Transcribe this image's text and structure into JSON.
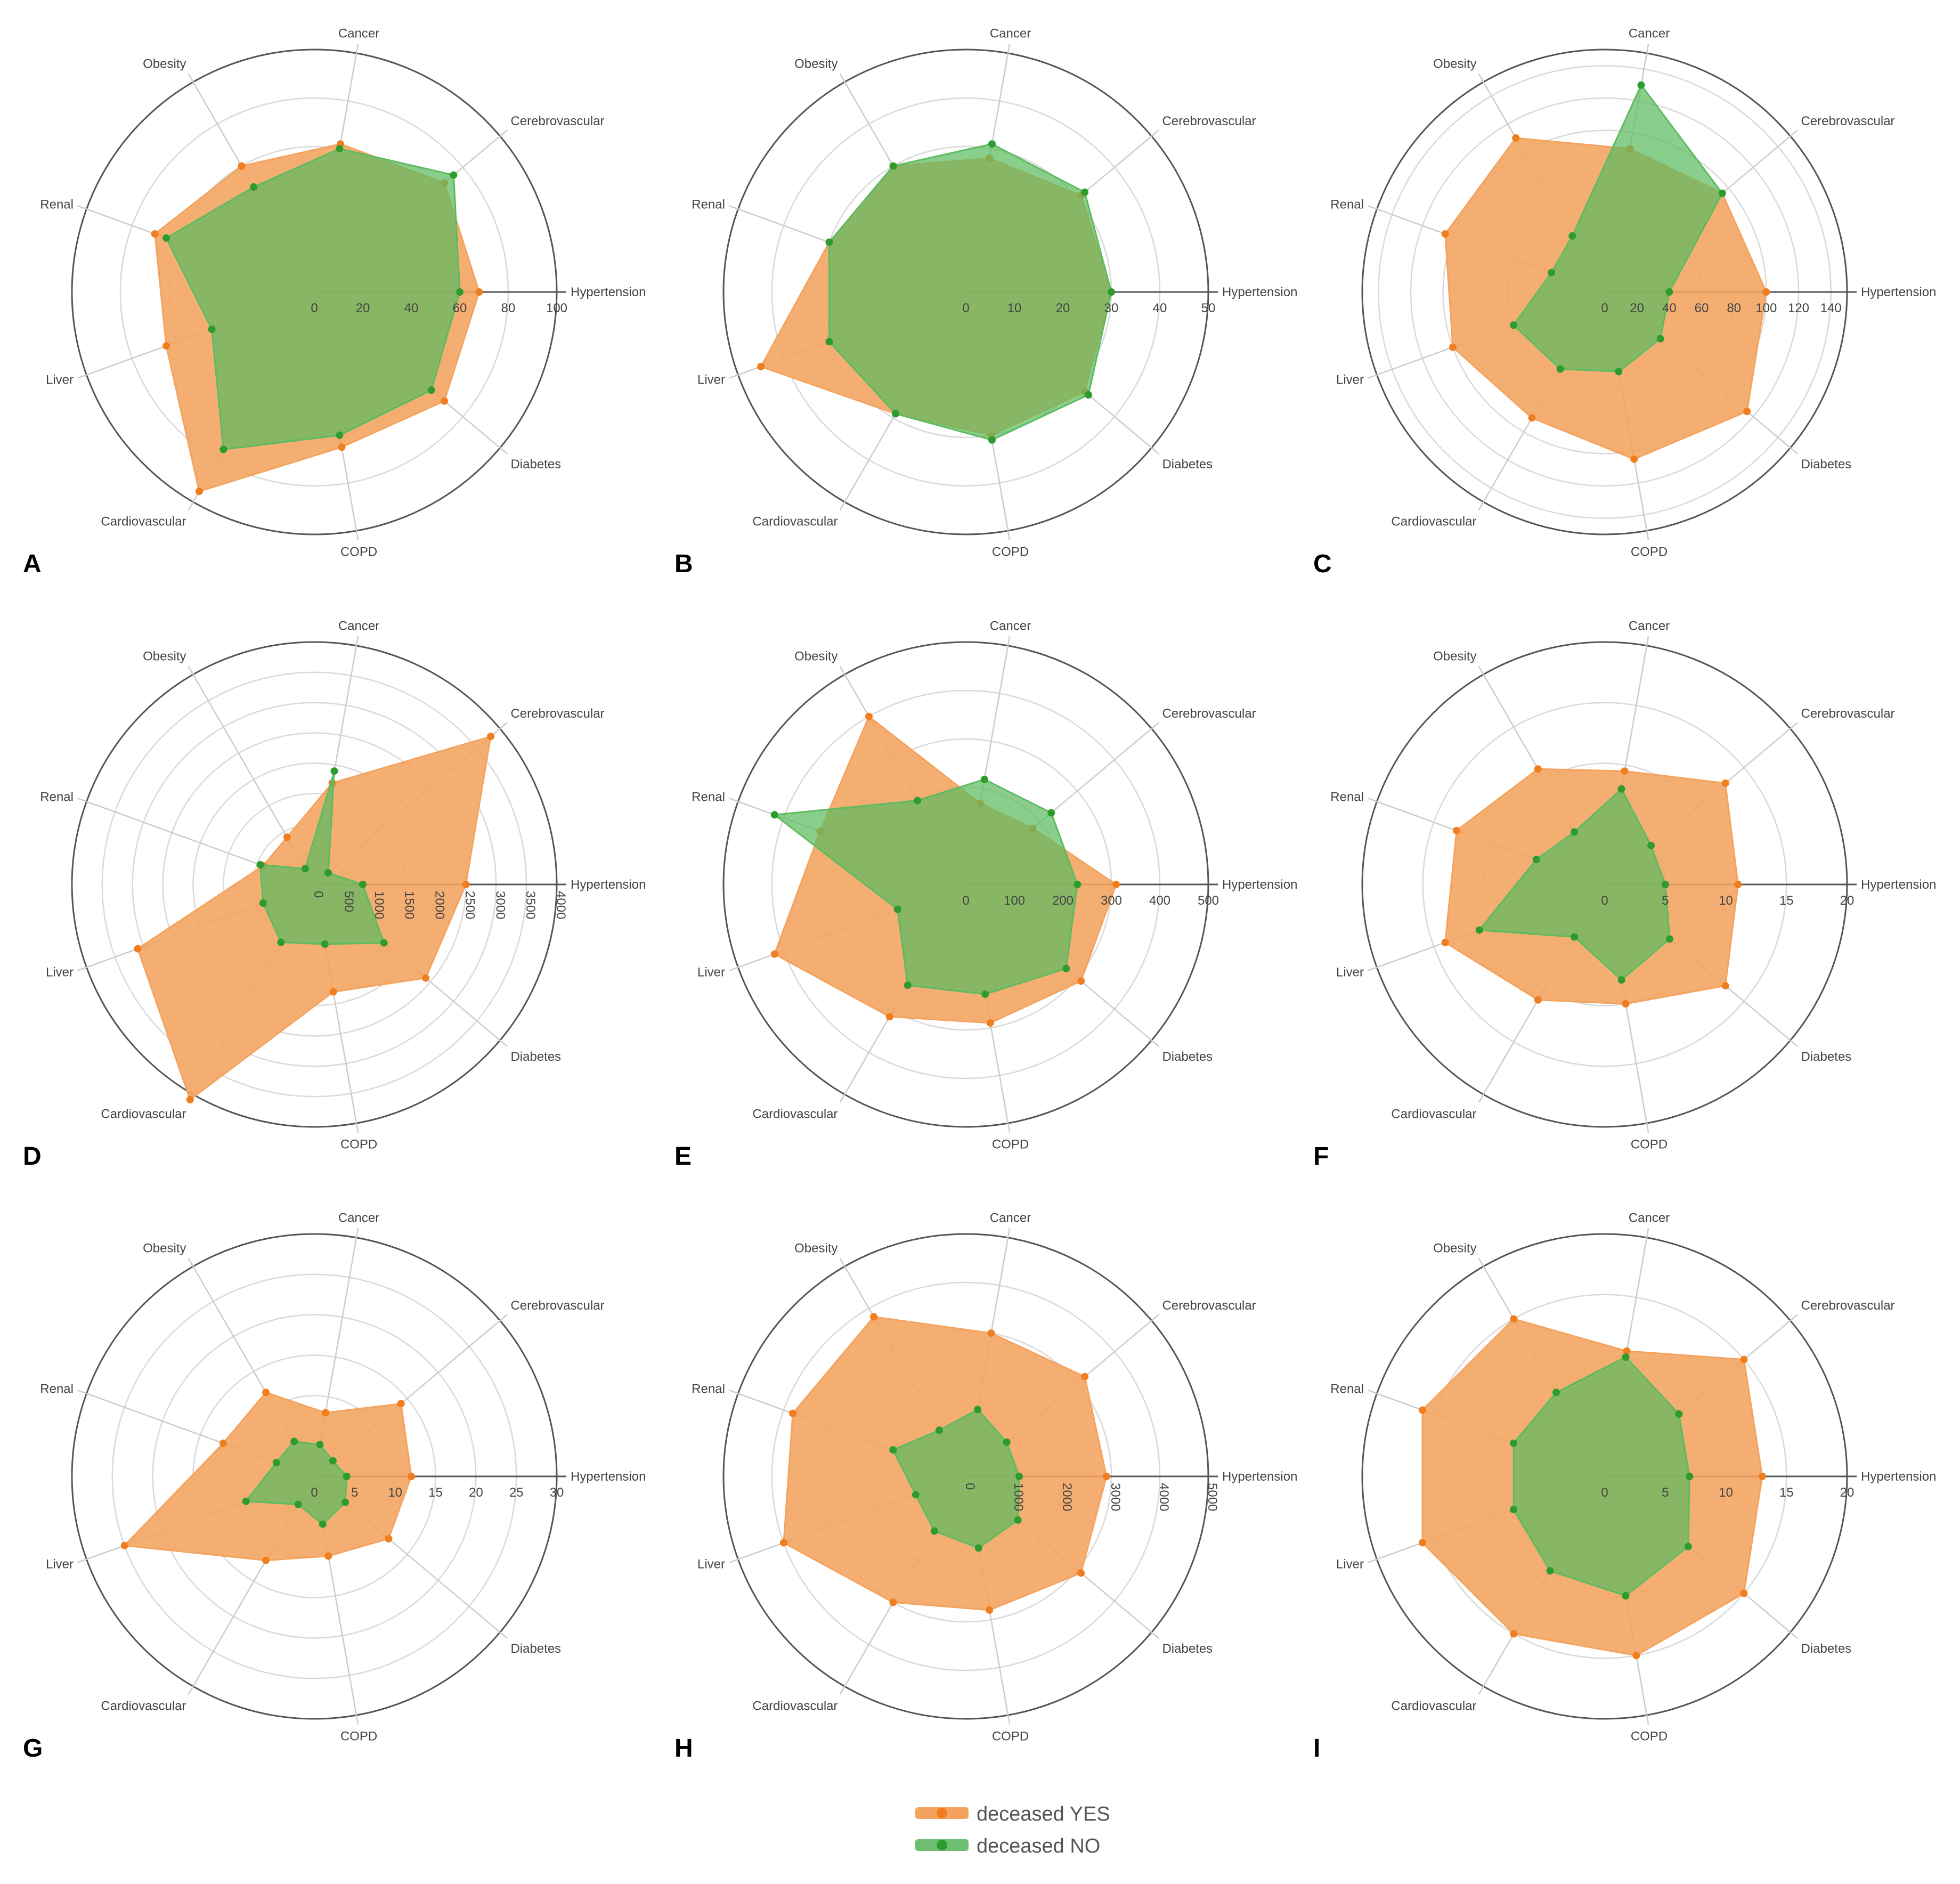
{
  "legend": {
    "items": [
      {
        "label": "deceased YES",
        "color": "#F4A35E",
        "marker": "#F07E1E"
      },
      {
        "label": "deceased NO",
        "color": "#6FBF73",
        "marker": "#2E9B2E"
      }
    ]
  },
  "chart_data": [
    {
      "type": "radar",
      "panel": "A",
      "categories": [
        "Hypertension",
        "Diabetes",
        "COPD",
        "Cardiovascular",
        "Liver",
        "Renal",
        "Obesity",
        "Cancer",
        "Cerebrovascular"
      ],
      "radial_range": [
        0,
        100
      ],
      "ticks": [
        0,
        20,
        40,
        60,
        80,
        100
      ],
      "tick_labels": [
        "0",
        "20",
        "40",
        "60",
        "80",
        "100"
      ],
      "series": [
        {
          "name": "deceased YES",
          "values": [
            68,
            70,
            65,
            95,
            65,
            70,
            60,
            62,
            70
          ]
        },
        {
          "name": "deceased NO",
          "values": [
            60,
            63,
            60,
            75,
            45,
            65,
            50,
            60,
            75
          ]
        }
      ]
    },
    {
      "type": "radar",
      "panel": "B",
      "categories": [
        "Hypertension",
        "Diabetes",
        "COPD",
        "Cardiovascular",
        "Liver",
        "Renal",
        "Obesity",
        "Cancer",
        "Cerebrovascular"
      ],
      "radial_range": [
        0,
        50
      ],
      "ticks": [
        0,
        10,
        20,
        30,
        40,
        50
      ],
      "tick_labels": [
        "0",
        "10",
        "20",
        "30",
        "40",
        "50"
      ],
      "series": [
        {
          "name": "deceased YES",
          "values": [
            30,
            32,
            30,
            29,
            45,
            30,
            30,
            28,
            31
          ]
        },
        {
          "name": "deceased NO",
          "values": [
            30,
            33,
            31,
            29,
            30,
            30,
            30,
            31,
            32
          ]
        }
      ]
    },
    {
      "type": "radar",
      "panel": "C",
      "categories": [
        "Hypertension",
        "Diabetes",
        "COPD",
        "Cardiovascular",
        "Liver",
        "Renal",
        "Obesity",
        "Cancer",
        "Cerebrovascular"
      ],
      "radial_range": [
        0,
        150
      ],
      "ticks": [
        0,
        20,
        40,
        60,
        80,
        100,
        120,
        140
      ],
      "tick_labels": [
        "0",
        "20",
        "40",
        "60",
        "80",
        "100",
        "120",
        "140"
      ],
      "series": [
        {
          "name": "deceased YES",
          "values": [
            100,
            115,
            105,
            90,
            100,
            105,
            110,
            90,
            95
          ]
        },
        {
          "name": "deceased NO",
          "values": [
            40,
            45,
            50,
            55,
            60,
            35,
            40,
            130,
            95
          ]
        }
      ]
    },
    {
      "type": "radar",
      "panel": "D",
      "categories": [
        "Hypertension",
        "Diabetes",
        "COPD",
        "Cardiovascular",
        "Liver",
        "Renal",
        "Obesity",
        "Cancer",
        "Cerebrovascular"
      ],
      "radial_range": [
        0,
        4000
      ],
      "ticks": [
        0,
        500,
        1000,
        1500,
        2000,
        2500,
        3000,
        3500,
        4000
      ],
      "tick_labels": [
        "0",
        "500",
        "1000",
        "1500",
        "2000",
        "2500",
        "3000",
        "3500",
        "4000"
      ],
      "series": [
        {
          "name": "deceased YES",
          "values": [
            2500,
            2400,
            1800,
            4100,
            3100,
            900,
            900,
            1700,
            3800
          ]
        },
        {
          "name": "deceased NO",
          "values": [
            800,
            1500,
            1000,
            1100,
            900,
            950,
            300,
            1900,
            300
          ]
        }
      ]
    },
    {
      "type": "radar",
      "panel": "E",
      "categories": [
        "Hypertension",
        "Diabetes",
        "COPD",
        "Cardiovascular",
        "Liver",
        "Renal",
        "Obesity",
        "Cancer",
        "Cerebrovascular"
      ],
      "radial_range": [
        0,
        500
      ],
      "ticks": [
        0,
        100,
        200,
        300,
        400,
        500
      ],
      "tick_labels": [
        "0",
        "100",
        "200",
        "300",
        "400",
        "500"
      ],
      "series": [
        {
          "name": "deceased YES",
          "values": [
            310,
            310,
            290,
            315,
            420,
            320,
            400,
            170,
            180
          ]
        },
        {
          "name": "deceased NO",
          "values": [
            230,
            270,
            230,
            240,
            150,
            420,
            200,
            220,
            230
          ]
        }
      ]
    },
    {
      "type": "radar",
      "panel": "F",
      "categories": [
        "Hypertension",
        "Diabetes",
        "COPD",
        "Cardiovascular",
        "Liver",
        "Renal",
        "Obesity",
        "Cancer",
        "Cerebrovascular"
      ],
      "radial_range": [
        0,
        20
      ],
      "ticks": [
        0,
        5,
        10,
        15,
        20
      ],
      "tick_labels": [
        "0",
        "5",
        "10",
        "15",
        "20"
      ],
      "series": [
        {
          "name": "deceased YES",
          "values": [
            11,
            13,
            10,
            11,
            14,
            13,
            11,
            9.5,
            13
          ]
        },
        {
          "name": "deceased NO",
          "values": [
            5,
            7,
            8,
            5,
            11,
            6,
            5,
            8,
            5
          ]
        }
      ]
    },
    {
      "type": "radar",
      "panel": "G",
      "categories": [
        "Hypertension",
        "Diabetes",
        "COPD",
        "Cardiovascular",
        "Liver",
        "Renal",
        "Obesity",
        "Cancer",
        "Cerebrovascular"
      ],
      "radial_range": [
        0,
        30
      ],
      "ticks": [
        0,
        5,
        10,
        15,
        20,
        25,
        30
      ],
      "tick_labels": [
        "0",
        "5",
        "10",
        "15",
        "20",
        "25",
        "30"
      ],
      "series": [
        {
          "name": "deceased YES",
          "values": [
            12,
            12,
            10,
            12,
            25,
            12,
            12,
            8,
            14
          ]
        },
        {
          "name": "deceased NO",
          "values": [
            4,
            5,
            6,
            4,
            9,
            5,
            5,
            4,
            3
          ]
        }
      ]
    },
    {
      "type": "radar",
      "panel": "H",
      "categories": [
        "Hypertension",
        "Diabetes",
        "COPD",
        "Cardiovascular",
        "Liver",
        "Renal",
        "Obesity",
        "Cancer",
        "Cerebrovascular"
      ],
      "radial_range": [
        0,
        5000
      ],
      "ticks": [
        0,
        1000,
        2000,
        3000,
        4000,
        5000
      ],
      "tick_labels": [
        "0",
        "1000",
        "2000",
        "3000",
        "4000",
        "5000"
      ],
      "series": [
        {
          "name": "deceased YES",
          "values": [
            2900,
            3100,
            2800,
            3000,
            4000,
            3800,
            3800,
            3000,
            3200
          ]
        },
        {
          "name": "deceased NO",
          "values": [
            1100,
            1400,
            1500,
            1300,
            1100,
            1600,
            1100,
            1400,
            1100
          ]
        }
      ]
    },
    {
      "type": "radar",
      "panel": "I",
      "categories": [
        "Hypertension",
        "Diabetes",
        "COPD",
        "Cardiovascular",
        "Liver",
        "Renal",
        "Obesity",
        "Cancer",
        "Cerebrovascular"
      ],
      "radial_range": [
        0,
        20
      ],
      "ticks": [
        0,
        5,
        10,
        15,
        20
      ],
      "tick_labels": [
        "0",
        "5",
        "10",
        "15",
        "20"
      ],
      "series": [
        {
          "name": "deceased YES",
          "values": [
            13,
            15,
            15,
            15,
            16,
            16,
            15,
            10.5,
            15
          ]
        },
        {
          "name": "deceased NO",
          "values": [
            7,
            9,
            10,
            9,
            8,
            8,
            8,
            10,
            8
          ]
        }
      ]
    }
  ]
}
